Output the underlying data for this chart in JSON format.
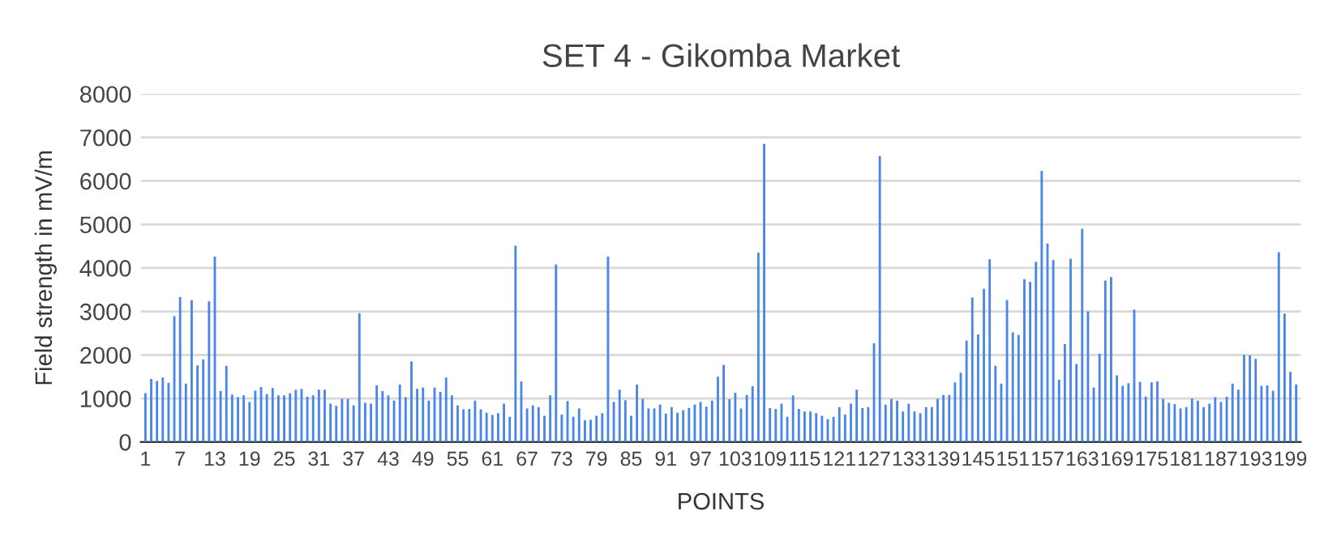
{
  "chart_data": {
    "type": "bar",
    "title": "SET 4 - Gikomba Market",
    "xlabel": "POINTS",
    "ylabel": "Field strength in mV/m",
    "categories": [
      "1",
      null,
      null,
      null,
      null,
      null,
      "7",
      null,
      null,
      null,
      null,
      null,
      "13",
      null,
      null,
      null,
      null,
      null,
      "19",
      null,
      null,
      null,
      null,
      null,
      "25",
      null,
      null,
      null,
      null,
      null,
      "31",
      null,
      null,
      null,
      null,
      null,
      "37",
      null,
      null,
      null,
      null,
      null,
      "43",
      null,
      null,
      null,
      null,
      null,
      "49",
      null,
      null,
      null,
      null,
      null,
      "55",
      null,
      null,
      null,
      null,
      null,
      "61",
      null,
      null,
      null,
      null,
      null,
      "67",
      null,
      null,
      null,
      null,
      null,
      "73",
      null,
      null,
      null,
      null,
      null,
      "79",
      null,
      null,
      null,
      null,
      null,
      "85",
      null,
      null,
      null,
      null,
      null,
      "91",
      null,
      null,
      null,
      null,
      null,
      "97",
      null,
      null,
      null,
      null,
      null,
      "103",
      null,
      null,
      null,
      null,
      null,
      "109",
      null,
      null,
      null,
      null,
      null,
      "115",
      null,
      null,
      null,
      null,
      null,
      "121",
      null,
      null,
      null,
      null,
      null,
      "127",
      null,
      null,
      null,
      null,
      null,
      "133",
      null,
      null,
      null,
      null,
      null,
      "139",
      null,
      null,
      null,
      null,
      null,
      "145",
      null,
      null,
      null,
      null,
      null,
      "151",
      null,
      null,
      null,
      null,
      null,
      "157",
      null,
      null,
      null,
      null,
      null,
      "163",
      null,
      null,
      null,
      null,
      null,
      "169",
      null,
      null,
      null,
      null,
      null,
      "175",
      null,
      null,
      null,
      null,
      null,
      "181",
      null,
      null,
      null,
      null,
      null,
      "187",
      null,
      null,
      null,
      null,
      null,
      "193",
      null,
      null,
      null,
      null,
      null,
      "199",
      null
    ],
    "values": [
      1120,
      1450,
      1400,
      1480,
      1360,
      2890,
      3330,
      1340,
      3260,
      1760,
      1900,
      3230,
      4260,
      1170,
      1750,
      1090,
      1030,
      1070,
      920,
      1180,
      1260,
      1100,
      1240,
      1070,
      1070,
      1120,
      1200,
      1220,
      1040,
      1070,
      1200,
      1200,
      880,
      830,
      990,
      990,
      840,
      2960,
      900,
      880,
      1300,
      1170,
      1070,
      950,
      1320,
      1030,
      1850,
      1220,
      1250,
      950,
      1250,
      1150,
      1480,
      1070,
      840,
      750,
      760,
      950,
      750,
      670,
      620,
      660,
      880,
      580,
      4510,
      1390,
      770,
      840,
      800,
      600,
      1070,
      4080,
      630,
      940,
      580,
      770,
      500,
      510,
      600,
      660,
      4260,
      920,
      1200,
      960,
      600,
      1320,
      990,
      770,
      770,
      860,
      650,
      800,
      670,
      730,
      780,
      860,
      920,
      810,
      950,
      1500,
      1770,
      980,
      1130,
      770,
      1080,
      1280,
      4350,
      6850,
      780,
      760,
      880,
      580,
      1070,
      760,
      700,
      700,
      660,
      600,
      520,
      580,
      800,
      630,
      880,
      1200,
      780,
      800,
      2270,
      6570,
      860,
      990,
      950,
      700,
      880,
      700,
      660,
      800,
      800,
      990,
      1080,
      1080,
      1370,
      1590,
      2330,
      3320,
      2470,
      3520,
      4200,
      1750,
      1340,
      3260,
      2520,
      2460,
      3740,
      3680,
      4140,
      6230,
      4560,
      4180,
      1430,
      2250,
      4210,
      1790,
      4900,
      3000,
      1250,
      2030,
      3710,
      3790,
      1530,
      1290,
      1350,
      3040,
      1380,
      1040,
      1370,
      1390,
      990,
      900,
      870,
      770,
      800,
      1000,
      950,
      800,
      880,
      1030,
      920,
      1040,
      1340,
      1200,
      2000,
      1990,
      1910,
      1290,
      1300,
      1180,
      4360,
      2950,
      1610,
      1320
    ],
    "color": "#4a86e8",
    "ylim": [
      0,
      8000
    ],
    "yticks": [
      0,
      1000,
      2000,
      3000,
      4000,
      5000,
      6000,
      7000,
      8000
    ],
    "grid": "y"
  }
}
